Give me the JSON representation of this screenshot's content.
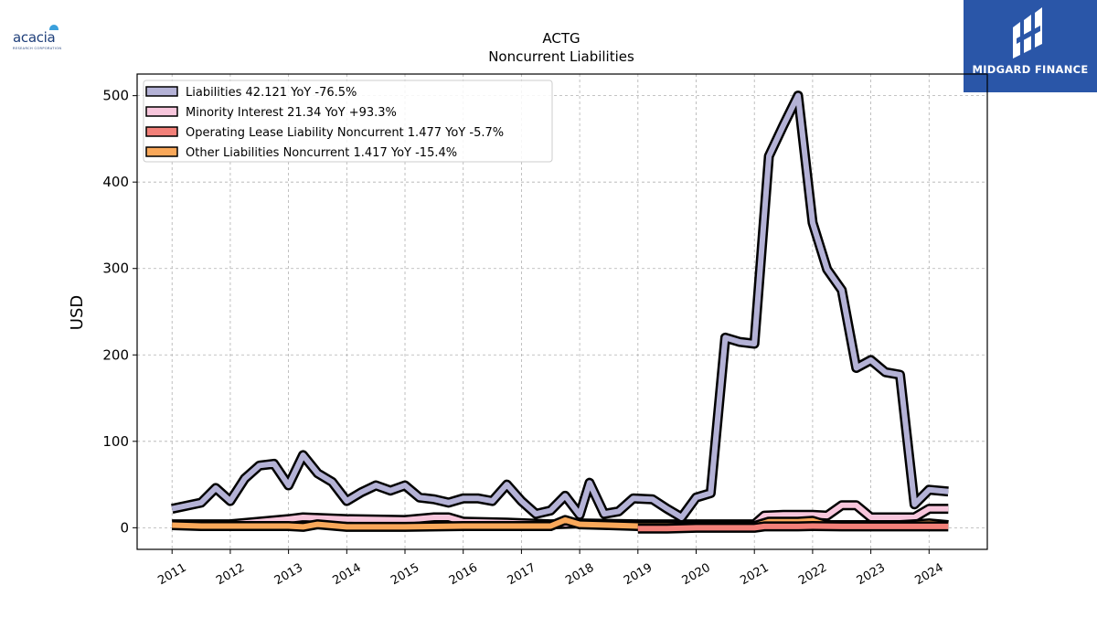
{
  "logos": {
    "left": {
      "text": "acacia",
      "subtext": "RESEARCH CORPORATION"
    },
    "right": {
      "text": "MIDGARD FINANCE",
      "bg_color": "#2a56a8"
    }
  },
  "chart_data": {
    "type": "area",
    "title": "ACTG",
    "subtitle": "Noncurrent  Liabilities",
    "xlabel": "",
    "ylabel": "USD",
    "ylim": [
      -25,
      525
    ],
    "xlim": [
      2010.4,
      2025.0
    ],
    "yticks": [
      0,
      100,
      200,
      300,
      400,
      500
    ],
    "xticks": [
      "2011",
      "2012",
      "2013",
      "2014",
      "2015",
      "2016",
      "2017",
      "2018",
      "2019",
      "2020",
      "2021",
      "2022",
      "2023",
      "2024"
    ],
    "grid": true,
    "legend_position": "top-left",
    "series": [
      {
        "name": "Liabilities",
        "legend": "Liabilities  42.121 YoY -76.5%",
        "color": "#b4b2d6",
        "points": [
          [
            2011.0,
            22
          ],
          [
            2011.5,
            29
          ],
          [
            2011.75,
            46
          ],
          [
            2012.0,
            31
          ],
          [
            2012.25,
            57
          ],
          [
            2012.5,
            72
          ],
          [
            2012.75,
            74
          ],
          [
            2013.0,
            49
          ],
          [
            2013.25,
            84
          ],
          [
            2013.5,
            63
          ],
          [
            2013.75,
            53
          ],
          [
            2014.0,
            31
          ],
          [
            2014.25,
            41
          ],
          [
            2014.5,
            49
          ],
          [
            2014.75,
            43
          ],
          [
            2015.0,
            49
          ],
          [
            2015.25,
            35
          ],
          [
            2015.5,
            33
          ],
          [
            2015.75,
            29
          ],
          [
            2016.0,
            34
          ],
          [
            2016.25,
            34
          ],
          [
            2016.5,
            31
          ],
          [
            2016.75,
            50
          ],
          [
            2017.0,
            31
          ],
          [
            2017.25,
            16
          ],
          [
            2017.5,
            20
          ],
          [
            2017.75,
            37
          ],
          [
            2018.0,
            15
          ],
          [
            2018.17,
            52
          ],
          [
            2018.42,
            16
          ],
          [
            2018.67,
            19
          ],
          [
            2018.92,
            34
          ],
          [
            2019.25,
            33
          ],
          [
            2019.5,
            22
          ],
          [
            2019.75,
            12
          ],
          [
            2020.0,
            35
          ],
          [
            2020.25,
            40
          ],
          [
            2020.5,
            220
          ],
          [
            2020.75,
            215
          ],
          [
            2021.0,
            213
          ],
          [
            2021.25,
            430
          ],
          [
            2021.5,
            466
          ],
          [
            2021.75,
            500
          ],
          [
            2022.0,
            353
          ],
          [
            2022.25,
            299
          ],
          [
            2022.5,
            275
          ],
          [
            2022.75,
            185
          ],
          [
            2023.0,
            194
          ],
          [
            2023.25,
            180
          ],
          [
            2023.5,
            177
          ],
          [
            2023.75,
            27
          ],
          [
            2024.0,
            44
          ],
          [
            2024.33,
            42
          ]
        ]
      },
      {
        "name": "Minority Interest",
        "legend": "Minority Interest  21.34 YoY +93.3%",
        "color": "#f7c6dc",
        "points": [
          [
            2011.0,
            4
          ],
          [
            2012.0,
            4
          ],
          [
            2012.5,
            7
          ],
          [
            2013.0,
            10
          ],
          [
            2013.25,
            12
          ],
          [
            2014.0,
            10
          ],
          [
            2015.0,
            9
          ],
          [
            2015.5,
            12
          ],
          [
            2015.75,
            12
          ],
          [
            2016.0,
            7
          ],
          [
            2016.75,
            6
          ],
          [
            2017.5,
            4
          ],
          [
            2018.0,
            5
          ],
          [
            2019.0,
            4
          ],
          [
            2020.0,
            4
          ],
          [
            2021.0,
            4
          ],
          [
            2021.17,
            14
          ],
          [
            2021.5,
            15
          ],
          [
            2022.0,
            15
          ],
          [
            2022.25,
            14
          ],
          [
            2022.5,
            26
          ],
          [
            2022.75,
            26
          ],
          [
            2023.0,
            12
          ],
          [
            2023.75,
            12
          ],
          [
            2024.0,
            22
          ],
          [
            2024.33,
            22
          ]
        ]
      },
      {
        "name": "Operating Lease Liability Noncurrent",
        "legend": "Operating Lease Liability Noncurrent  1.477 YoY -5.7%",
        "color": "#f28079",
        "points": [
          [
            2019.0,
            -1
          ],
          [
            2019.5,
            -1
          ],
          [
            2020.0,
            0
          ],
          [
            2021.0,
            0
          ],
          [
            2021.17,
            1.5
          ],
          [
            2021.75,
            1.5
          ],
          [
            2022.0,
            2
          ],
          [
            2022.5,
            1.5
          ],
          [
            2023.0,
            1.5
          ],
          [
            2024.0,
            1.5
          ],
          [
            2024.33,
            1.5
          ]
        ]
      },
      {
        "name": "Other Liabilities Noncurrent",
        "legend": "Other Liabilities Noncurrent  1.417 YoY -15.4%",
        "color": "#f9a85a",
        "points": [
          [
            2011.0,
            3
          ],
          [
            2011.5,
            2
          ],
          [
            2012.0,
            2
          ],
          [
            2013.0,
            2
          ],
          [
            2013.25,
            1
          ],
          [
            2013.5,
            4
          ],
          [
            2014.0,
            1
          ],
          [
            2015.0,
            1
          ],
          [
            2016.0,
            2
          ],
          [
            2017.0,
            2
          ],
          [
            2017.5,
            2
          ],
          [
            2017.75,
            9
          ],
          [
            2018.0,
            4
          ],
          [
            2018.5,
            3
          ],
          [
            2019.0,
            2
          ],
          [
            2019.5,
            2
          ],
          [
            2020.0,
            2
          ],
          [
            2021.0,
            2
          ],
          [
            2021.25,
            7
          ],
          [
            2021.75,
            7
          ],
          [
            2022.0,
            8
          ],
          [
            2022.25,
            3
          ],
          [
            2022.5,
            3
          ],
          [
            2023.0,
            3
          ],
          [
            2023.5,
            3
          ],
          [
            2024.0,
            5
          ],
          [
            2024.33,
            3
          ]
        ]
      }
    ]
  }
}
